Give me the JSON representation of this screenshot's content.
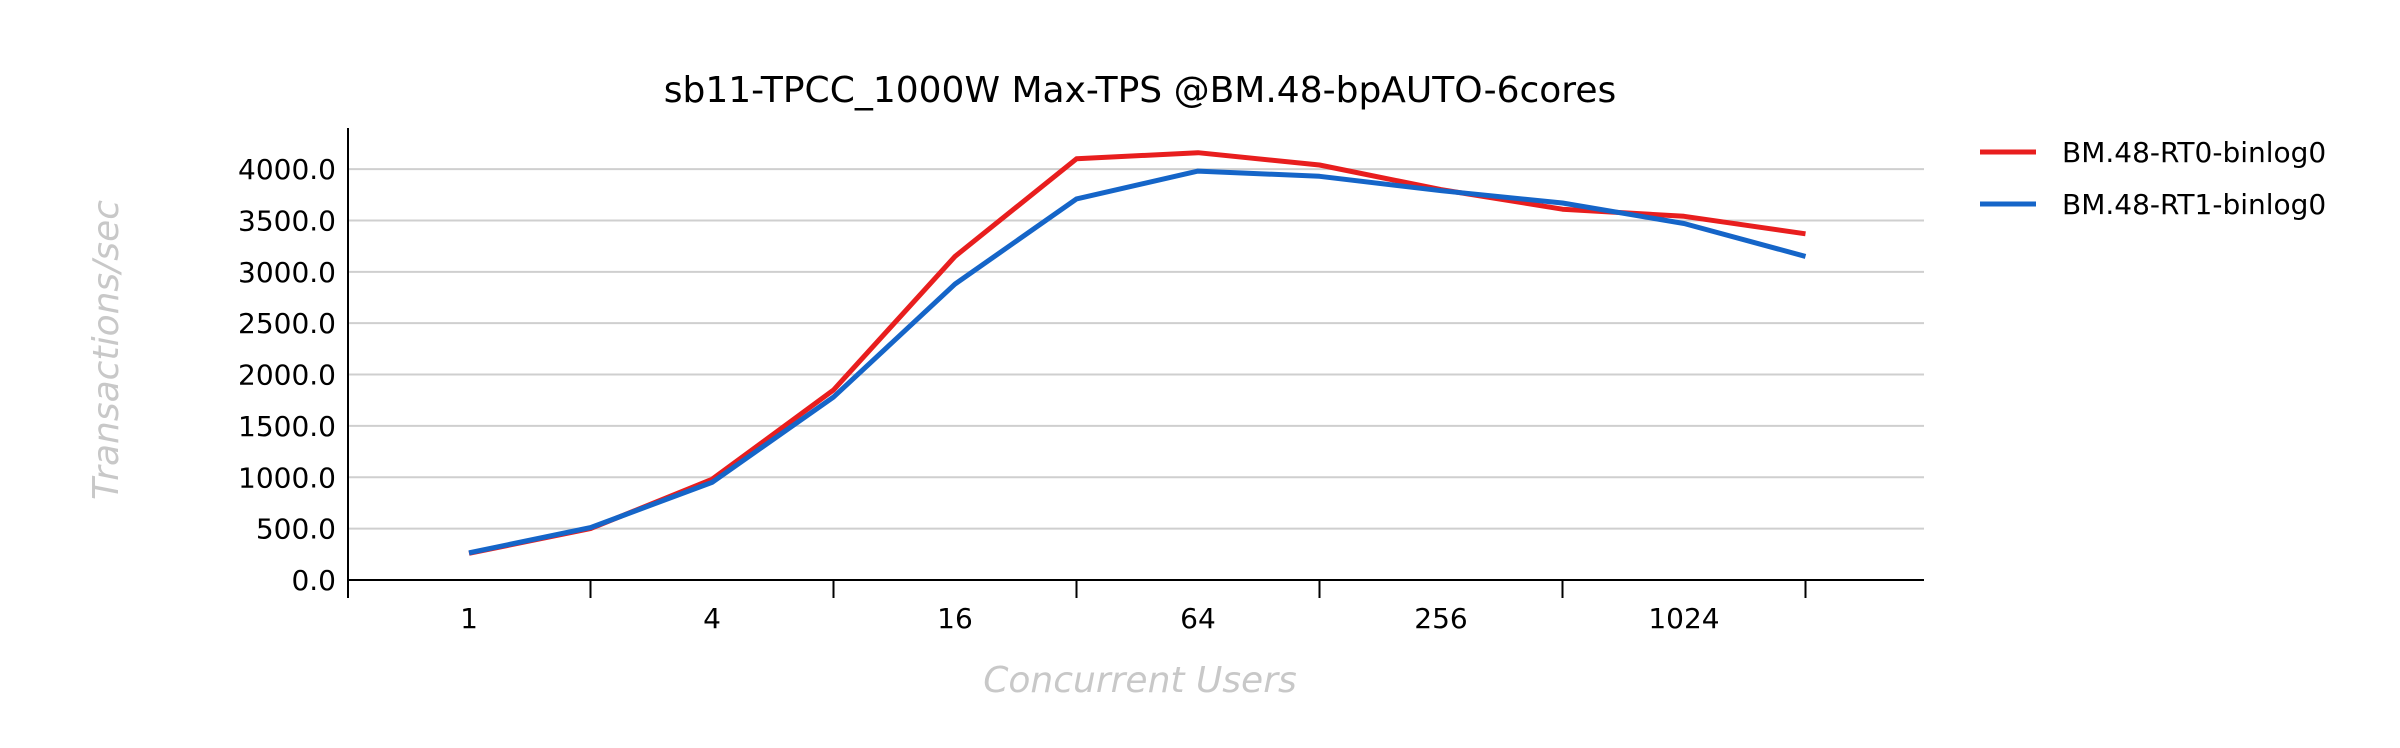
{
  "chart_data": {
    "type": "line",
    "title": "sb11-TPCC_1000W Max-TPS @BM.48-bpAUTO-6cores",
    "xlabel": "Concurrent Users",
    "ylabel": "Transactions/sec",
    "x": [
      1,
      2,
      4,
      8,
      16,
      32,
      64,
      128,
      256,
      512,
      1024,
      2048
    ],
    "x_ticks": [
      "1",
      "",
      "4",
      "",
      "16",
      "",
      "64",
      "",
      "256",
      "",
      "1024",
      ""
    ],
    "xscale": "log2",
    "ylim": [
      0,
      4400
    ],
    "y_ticks": [
      "0.0",
      "500.0",
      "1000.0",
      "1500.0",
      "2000.0",
      "2500.0",
      "3000.0",
      "3500.0",
      "4000.0"
    ],
    "grid": true,
    "legend_position": "top-right",
    "series": [
      {
        "name": "BM.48-RT0-binlog0",
        "color": "#e81e1e",
        "values": [
          260,
          500,
          980,
          1850,
          3150,
          4100,
          4160,
          4040,
          3800,
          3610,
          3540,
          3370
        ]
      },
      {
        "name": "BM.48-RT1-binlog0",
        "color": "#1565c8",
        "values": [
          265,
          510,
          950,
          1780,
          2880,
          3710,
          3980,
          3930,
          3790,
          3670,
          3470,
          3150
        ]
      }
    ]
  }
}
